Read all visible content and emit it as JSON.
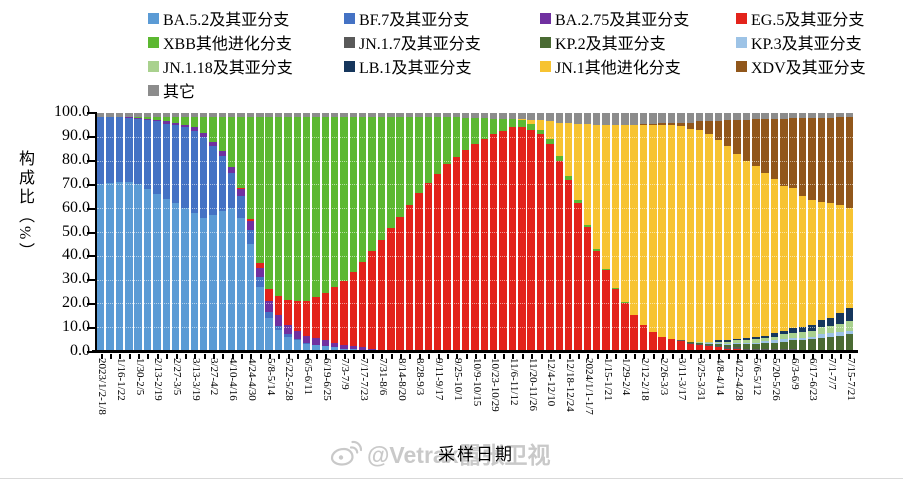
{
  "watermark": {
    "handle": "@Vetrax嚣张卫视"
  },
  "chart_data": {
    "type": "bar",
    "stacked": true,
    "title": "",
    "xlabel": "采样日期",
    "ylabel": "构成比（%）",
    "ylim": [
      0,
      100
    ],
    "grid": "dotted-horizontal",
    "legend_position": "top",
    "ytick_labels": [
      "100.0",
      "90.0",
      "80.0",
      "70.0",
      "60.0",
      "50.0",
      "40.0",
      "30.0",
      "20.0",
      "10.0",
      "0.0"
    ],
    "series": [
      {
        "name": "BA.5.2及其亚分支",
        "color": "#5B9BD5"
      },
      {
        "name": "BF.7及其亚分支",
        "color": "#4472C4"
      },
      {
        "name": "BA.2.75及其亚分支",
        "color": "#7030A0"
      },
      {
        "name": "EG.5及其亚分支",
        "color": "#E3231B"
      },
      {
        "name": "XBB其他进化分支",
        "color": "#5CB831"
      },
      {
        "name": "JN.1.7及其亚分支",
        "color": "#595959"
      },
      {
        "name": "KP.2及其亚分支",
        "color": "#4A6B33"
      },
      {
        "name": "KP.3及其亚分支",
        "color": "#9DC3E6"
      },
      {
        "name": "JN.1.18及其亚分支",
        "color": "#A9D18E"
      },
      {
        "name": "LB.1及其亚分支",
        "color": "#16365C"
      },
      {
        "name": "JN.1其他进化分支",
        "color": "#F7C331"
      },
      {
        "name": "XDV及其亚分支",
        "color": "#91571B"
      },
      {
        "name": "其它",
        "color": "#8C8C8C"
      }
    ],
    "x_tick_labels": [
      "2023/1/2-1/8",
      "1/16-1/22",
      "1/30-2/5",
      "2/13-2/19",
      "2/27-3/5",
      "3/13-3/19",
      "3/27-4/2",
      "4/10-4/16",
      "4/24-4/30",
      "5/8-5/14",
      "5/22-5/28",
      "6/5-6/11",
      "6/19-6/25",
      "7/3-7/9",
      "7/17-7/23",
      "7/31-8/6",
      "8/14-8/20",
      "8/28-9/3",
      "9/11-9/17",
      "9/25-10/1",
      "10/9-10/15",
      "10/23-10/29",
      "11/6-11/12",
      "11/20-11/26",
      "12/4-12/10",
      "12/18-12/24",
      "2024/1/1-1/7",
      "1/15-1/21",
      "1/29-2/4",
      "2/12-2/18",
      "2/26-3/3",
      "3/11-3/17",
      "3/25-3/31",
      "4/8-4/14",
      "4/22-4/28",
      "5/6-5/12",
      "5/20-5/26",
      "6/3-6/9",
      "6/17-6/23",
      "7/1-7/7",
      "7/15-7/21"
    ],
    "label_every": 2,
    "bars_order": [
      "BA.5.2",
      "BF.7",
      "BA.2.75",
      "EG.5",
      "XBB",
      "JN.1.7",
      "KP.2",
      "KP.3",
      "JN.1.18",
      "LB.1",
      "JN.1",
      "XDV",
      "其它"
    ],
    "bars": [
      [
        70,
        28.5,
        0,
        0,
        0,
        0,
        0,
        0,
        0,
        0,
        0,
        0,
        1.5
      ],
      [
        70.5,
        28,
        0,
        0,
        0,
        0,
        0,
        0,
        0,
        0,
        0,
        0,
        1.5
      ],
      [
        71,
        27.5,
        0,
        0,
        0,
        0,
        0,
        0,
        0,
        0,
        0,
        0,
        1.5
      ],
      [
        71,
        27,
        0.5,
        0,
        0,
        0,
        0,
        0,
        0,
        0,
        0,
        0,
        1.5
      ],
      [
        70,
        27.5,
        0.5,
        0,
        0.5,
        0,
        0,
        0,
        0,
        0,
        0,
        0,
        1.5
      ],
      [
        68,
        29,
        0.5,
        0,
        1,
        0,
        0,
        0,
        0,
        0,
        0,
        0,
        1.5
      ],
      [
        66,
        30.5,
        0.5,
        0,
        1.5,
        0,
        0,
        0,
        0,
        0,
        0,
        0,
        1.5
      ],
      [
        64,
        31.5,
        1,
        0,
        2,
        0,
        0,
        0,
        0,
        0,
        0,
        0,
        1.5
      ],
      [
        62,
        33,
        1,
        0,
        2.5,
        0,
        0,
        0,
        0,
        0,
        0,
        0,
        1.5
      ],
      [
        60,
        34,
        1,
        0,
        3.5,
        0,
        0,
        0,
        0,
        0,
        0,
        0,
        1.5
      ],
      [
        58,
        34.5,
        1.5,
        0,
        4.5,
        0,
        0,
        0,
        0,
        0,
        0,
        0,
        1.5
      ],
      [
        56,
        34,
        1.5,
        0,
        7,
        0,
        0,
        0,
        0,
        0,
        0,
        0,
        1.5
      ],
      [
        57,
        29,
        2,
        0,
        10.5,
        0,
        0,
        0,
        0,
        0,
        0,
        0,
        1.5
      ],
      [
        59,
        23,
        2,
        0,
        14.5,
        0,
        0,
        0,
        0,
        0,
        0,
        0,
        1.5
      ],
      [
        60,
        15,
        2.5,
        0,
        21,
        0,
        0,
        0,
        0,
        0,
        0,
        0,
        1.5
      ],
      [
        56,
        9,
        3,
        0.5,
        30,
        0,
        0,
        0,
        0,
        0,
        0,
        0,
        1.5
      ],
      [
        45,
        6,
        3.5,
        1,
        43,
        0,
        0,
        0,
        0,
        0,
        0,
        0,
        1.5
      ],
      [
        27,
        4,
        4,
        2,
        61.5,
        0,
        0,
        0,
        0,
        0,
        0,
        0,
        1.5
      ],
      [
        14,
        2.5,
        4.5,
        5,
        72.5,
        0,
        0,
        0,
        0,
        0,
        0,
        0,
        1.5
      ],
      [
        9,
        1.5,
        4.5,
        8,
        75.5,
        0,
        0,
        0,
        0,
        0,
        0,
        0,
        1.5
      ],
      [
        6,
        1,
        4,
        10.5,
        77,
        0,
        0,
        0,
        0,
        0,
        0,
        0,
        1.5
      ],
      [
        4.5,
        0.5,
        3.5,
        12.5,
        77.5,
        0,
        0,
        0,
        0,
        0,
        0,
        0,
        1.5
      ],
      [
        3,
        0.5,
        3,
        14.5,
        77.5,
        0,
        0,
        0,
        0,
        0,
        0,
        0,
        1.5
      ],
      [
        2.5,
        0,
        3,
        17,
        76,
        0,
        0,
        0,
        0,
        0,
        0,
        0,
        1.5
      ],
      [
        2,
        0,
        2.5,
        20,
        74,
        0,
        0,
        0,
        0,
        0,
        0,
        0,
        1.5
      ],
      [
        1.5,
        0,
        2,
        23.5,
        71.5,
        0,
        0,
        0,
        0,
        0,
        0,
        0,
        1.5
      ],
      [
        1,
        0,
        1.5,
        27,
        69,
        0,
        0,
        0,
        0,
        0,
        0,
        0,
        1.5
      ],
      [
        1,
        0,
        1,
        31,
        65.5,
        0,
        0,
        0,
        0,
        0,
        0,
        0,
        1.5
      ],
      [
        0.5,
        0,
        1,
        36,
        61,
        0,
        0,
        0,
        0,
        0,
        0,
        0,
        1.5
      ],
      [
        0.5,
        0,
        0.5,
        41,
        56.5,
        0,
        0,
        0,
        0,
        0,
        0,
        0,
        1.5
      ],
      [
        0,
        0,
        0.5,
        46,
        52,
        0,
        0,
        0,
        0,
        0,
        0,
        0,
        1.5
      ],
      [
        0,
        0,
        0,
        51.5,
        47,
        0,
        0,
        0,
        0,
        0,
        0,
        0,
        1.5
      ],
      [
        0,
        0,
        0,
        56.5,
        42,
        0,
        0,
        0,
        0,
        0,
        0,
        0,
        1.5
      ],
      [
        0,
        0,
        0,
        61.5,
        37,
        0,
        0,
        0,
        0,
        0,
        0,
        0,
        1.5
      ],
      [
        0,
        0,
        0,
        66.5,
        32,
        0,
        0,
        0,
        0,
        0,
        0,
        0,
        1.5
      ],
      [
        0,
        0,
        0,
        70.5,
        28,
        0,
        0,
        0,
        0,
        0,
        0,
        0,
        1.5
      ],
      [
        0,
        0,
        0,
        74.5,
        24,
        0,
        0,
        0,
        0,
        0,
        0,
        0,
        1.5
      ],
      [
        0,
        0,
        0,
        78.5,
        20,
        0,
        0,
        0,
        0,
        0,
        0,
        0,
        1.5
      ],
      [
        0,
        0,
        0,
        81.5,
        17,
        0,
        0,
        0,
        0,
        0,
        0,
        0,
        1.5
      ],
      [
        0,
        0,
        0,
        84.5,
        13.5,
        0,
        0,
        0,
        0,
        0,
        0,
        0,
        2
      ],
      [
        0,
        0,
        0,
        87,
        11,
        0,
        0,
        0,
        0,
        0,
        0,
        0,
        2
      ],
      [
        0,
        0,
        0,
        89,
        9,
        0,
        0,
        0,
        0,
        0,
        0,
        0,
        2
      ],
      [
        0,
        0,
        0,
        91,
        6.5,
        0,
        0,
        0,
        0,
        0,
        0,
        0,
        2.5
      ],
      [
        0,
        0,
        0,
        92.5,
        5,
        0,
        0,
        0,
        0,
        0,
        0,
        0,
        2.5
      ],
      [
        0,
        0,
        0,
        94,
        3.5,
        0,
        0,
        0,
        0,
        0,
        0,
        0,
        2.5
      ],
      [
        0,
        0,
        0,
        94,
        3,
        0,
        0,
        0,
        0,
        0,
        0.5,
        0,
        2.5
      ],
      [
        0,
        0,
        0,
        93,
        2.5,
        0,
        0,
        0,
        0,
        0,
        1.5,
        0,
        3
      ],
      [
        0,
        0,
        0,
        91,
        2,
        0,
        0,
        0,
        0,
        0,
        4,
        0,
        3
      ],
      [
        0,
        0,
        0,
        87,
        2,
        0,
        0,
        0,
        0,
        0,
        7.5,
        0,
        3.5
      ],
      [
        0,
        0,
        0,
        80,
        2,
        0,
        0,
        0,
        0,
        0,
        14,
        0,
        4
      ],
      [
        0,
        0,
        0,
        72,
        1.5,
        0,
        0,
        0,
        0,
        0,
        22.5,
        0,
        4
      ],
      [
        0,
        0,
        0,
        62,
        1.5,
        0,
        0,
        0,
        0,
        0,
        32,
        0,
        4.5
      ],
      [
        0,
        0,
        0,
        52,
        1,
        0,
        0,
        0,
        0,
        0,
        42.5,
        0,
        4.5
      ],
      [
        0,
        0,
        0,
        42,
        1,
        0,
        0,
        0,
        0,
        0,
        52,
        0,
        5
      ],
      [
        0,
        0,
        0,
        34,
        0.5,
        0,
        0,
        0,
        0,
        0,
        60.5,
        0,
        5
      ],
      [
        0,
        0,
        0,
        26,
        0.5,
        0,
        0,
        0,
        0,
        0,
        68.5,
        0,
        5
      ],
      [
        0,
        0,
        0,
        20,
        0.5,
        0,
        0,
        0,
        0,
        0,
        74.5,
        0,
        5
      ],
      [
        0,
        0,
        0,
        15,
        0,
        0,
        0,
        0,
        0,
        0,
        80,
        0,
        5
      ],
      [
        0,
        0,
        0,
        11,
        0,
        0,
        0,
        0,
        0,
        0,
        84,
        0.5,
        4.5
      ],
      [
        0,
        0,
        0,
        8,
        0,
        0,
        0,
        0,
        0,
        0,
        87,
        0.5,
        4.5
      ],
      [
        0,
        0,
        0,
        6,
        0,
        0,
        0,
        0,
        0,
        0,
        89,
        1,
        4
      ],
      [
        0,
        0,
        0,
        5,
        0,
        0,
        0,
        0,
        0,
        0,
        90,
        1,
        4
      ],
      [
        0,
        0,
        0,
        4,
        0,
        0.5,
        0,
        0,
        0,
        0,
        90,
        1.5,
        4
      ],
      [
        0,
        0,
        0,
        3,
        0,
        0.5,
        0.5,
        0,
        0,
        0,
        89.5,
        2.5,
        4
      ],
      [
        0,
        0,
        0,
        2.5,
        0,
        0.5,
        0.5,
        0,
        0.5,
        0,
        89,
        3.5,
        3.5
      ],
      [
        0,
        0,
        0,
        2,
        0,
        0.5,
        0.5,
        0.5,
        0.5,
        0,
        87,
        5.5,
        3.5
      ],
      [
        0,
        0,
        0,
        1.5,
        0,
        0.5,
        1,
        0.5,
        0.5,
        0.5,
        84,
        8,
        3.5
      ],
      [
        0,
        0,
        0,
        1,
        0,
        0.5,
        1,
        0.5,
        1,
        0.5,
        81.5,
        11,
        3
      ],
      [
        0,
        0,
        0,
        1,
        0,
        0.5,
        1.5,
        0.5,
        1,
        0.5,
        77.5,
        14,
        3
      ],
      [
        0,
        0,
        0,
        0.5,
        0,
        0.5,
        2,
        0.5,
        1,
        1,
        74.5,
        17,
        3
      ],
      [
        0,
        0,
        0,
        0.5,
        0,
        0.5,
        2,
        0.5,
        1.5,
        1,
        71.5,
        19.5,
        2.5
      ],
      [
        0,
        0,
        0,
        0.5,
        0,
        0.5,
        2.5,
        0.5,
        1.5,
        1,
        68,
        22.5,
        2.5
      ],
      [
        0,
        0,
        0,
        0.5,
        0,
        0.5,
        2.5,
        1,
        1.5,
        1.5,
        64.5,
        25,
        2.5
      ],
      [
        0,
        0,
        0,
        0.5,
        0,
        0.5,
        3,
        1,
        2,
        1.5,
        61,
        28,
        2.5
      ],
      [
        0,
        0,
        0,
        0.5,
        0,
        0.5,
        3.5,
        1,
        2,
        2,
        58.5,
        29.5,
        2
      ],
      [
        0,
        0,
        0,
        0,
        0,
        0.5,
        4,
        1,
        2.5,
        2,
        55,
        33,
        2
      ],
      [
        0,
        0,
        0,
        0,
        0,
        0.5,
        4.5,
        1,
        2.5,
        2.5,
        52.5,
        34.5,
        2
      ],
      [
        0,
        0,
        0,
        0,
        0,
        0.5,
        5,
        1.5,
        3,
        3,
        49.5,
        35.5,
        2
      ],
      [
        0,
        0,
        0,
        0,
        0,
        0.5,
        5.5,
        1.5,
        3,
        3.5,
        48,
        36,
        2
      ],
      [
        0,
        0,
        0,
        0,
        0,
        0.5,
        6,
        1.5,
        3.5,
        4.5,
        45.5,
        37,
        1.5
      ],
      [
        0,
        0,
        0,
        0,
        0,
        0.5,
        6.5,
        1.5,
        4,
        5.5,
        42,
        38.5,
        1.5
      ]
    ]
  }
}
